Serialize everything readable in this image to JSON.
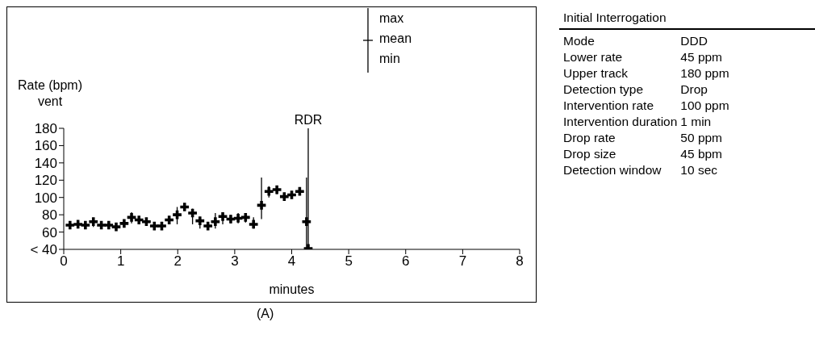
{
  "chart_data": [
    {
      "type": "scatter",
      "xlabel": "minutes",
      "ylabel": "Rate (bpm)",
      "xlim": [
        0,
        8
      ],
      "xticks": [
        0,
        1,
        2,
        3,
        4,
        5,
        6,
        7,
        8
      ],
      "ylim": [
        40,
        180
      ],
      "yticks": [
        {
          "value": 40,
          "label": "< 40"
        },
        60,
        80,
        100,
        120,
        140,
        160,
        180
      ],
      "grid": false,
      "color": "#000000",
      "marker": "cross",
      "x": [
        0.11,
        0.25,
        0.38,
        0.52,
        0.66,
        0.79,
        0.92,
        1.06,
        1.19,
        1.32,
        1.45,
        1.59,
        1.72,
        1.85,
        1.99,
        2.12,
        2.26,
        2.39,
        2.53,
        2.66,
        2.79,
        2.93,
        3.06,
        3.19,
        3.33,
        3.47,
        3.6,
        3.74,
        3.87,
        4.0,
        4.14,
        4.26,
        4.29
      ],
      "values": [
        68,
        69,
        68,
        72,
        68,
        68,
        66,
        70,
        77,
        74,
        72,
        67,
        67,
        74,
        80,
        89,
        82,
        73,
        67,
        72,
        78,
        75,
        76,
        77,
        69,
        91,
        107,
        109,
        101,
        103,
        107,
        72,
        41
      ],
      "errors": [
        [
          66,
          70
        ],
        [
          67,
          71
        ],
        [
          66,
          70
        ],
        [
          66,
          76
        ],
        [
          65,
          70
        ],
        [
          66,
          70
        ],
        [
          65,
          68
        ],
        [
          68,
          72
        ],
        [
          70,
          83
        ],
        [
          71,
          76
        ],
        [
          70,
          74
        ],
        [
          64,
          70
        ],
        [
          64,
          70
        ],
        [
          70,
          78
        ],
        [
          69,
          89
        ],
        [
          86,
          92
        ],
        [
          69,
          87
        ],
        [
          64,
          76
        ],
        [
          66,
          68
        ],
        [
          64,
          82
        ],
        [
          69,
          83
        ],
        [
          70,
          80
        ],
        [
          70,
          82
        ],
        [
          71,
          82
        ],
        [
          64,
          77
        ],
        [
          75,
          123
        ],
        [
          100,
          113
        ],
        [
          104,
          113
        ],
        [
          100,
          102
        ],
        [
          100,
          107
        ],
        [
          105,
          108
        ],
        [
          41,
          123
        ],
        [
          41,
          180
        ]
      ],
      "annotations": [
        "vent",
        "max",
        "mean",
        "min",
        {
          "text": "RDR",
          "x": 4.29,
          "y": 180
        },
        "(A)"
      ]
    },
    {
      "type": "other",
      "title": "Initial Interrogation",
      "annotations": [
        "Mode",
        "DDD",
        "Lower rate",
        "45 ppm",
        "Upper track",
        "180 ppm",
        "Detection type",
        "Drop",
        "Intervention rate",
        "100 ppm",
        "Intervention duration",
        "1 min",
        "Drop rate",
        "50 ppm",
        "Drop size",
        "45 bpm",
        "Detection window",
        "10 sec"
      ]
    }
  ]
}
